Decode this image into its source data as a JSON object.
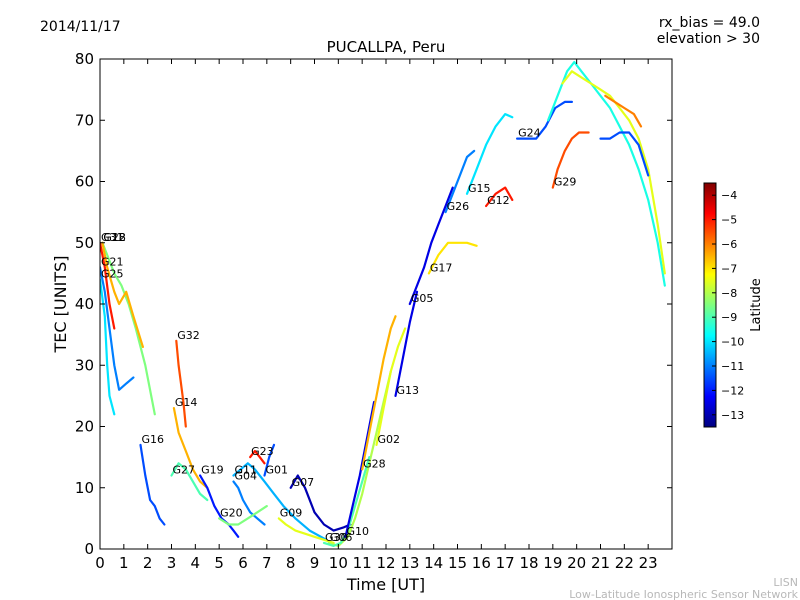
{
  "header": {
    "date": "2014/11/17",
    "rx_bias": "rx_bias = 49.0",
    "elevation": "elevation > 30"
  },
  "credit": {
    "line1": "LISN",
    "line2": "Low-Latitude Ionospheric Sensor Network"
  },
  "chart_data": {
    "type": "scatter",
    "title": "PUCALLPA, Peru",
    "xlabel": "Time [UT]",
    "ylabel": "TEC [UNITS]",
    "xlim": [
      0,
      24
    ],
    "ylim": [
      0,
      80
    ],
    "x_ticks": [
      0,
      1,
      2,
      3,
      4,
      5,
      6,
      7,
      8,
      9,
      10,
      11,
      12,
      13,
      14,
      15,
      16,
      17,
      18,
      19,
      20,
      21,
      22,
      23
    ],
    "y_ticks": [
      0,
      10,
      20,
      30,
      40,
      50,
      60,
      70,
      80
    ],
    "grid": false,
    "colorbar": {
      "label": "Latitude",
      "range": [
        -13.5,
        -3.5
      ],
      "ticks": [
        -4,
        -5,
        -6,
        -7,
        -8,
        -9,
        -10,
        -11,
        -12,
        -13
      ],
      "colormap": [
        "#00007f",
        "#0000ff",
        "#007fff",
        "#00ffff",
        "#7fff7f",
        "#ffff00",
        "#ff7f00",
        "#ff0000",
        "#7f0000"
      ]
    },
    "series": [
      {
        "name": "G22",
        "lat": -8.5,
        "points": [
          [
            0.1,
            50
          ],
          [
            0.3,
            48
          ],
          [
            0.6,
            45
          ],
          [
            0.9,
            43
          ],
          [
            1.2,
            40
          ],
          [
            1.5,
            36
          ],
          [
            1.9,
            30
          ],
          [
            2.3,
            22
          ]
        ]
      },
      {
        "name": "G18",
        "lat": -6.5,
        "points": [
          [
            0.1,
            50
          ],
          [
            0.3,
            46
          ],
          [
            0.6,
            42
          ],
          [
            0.8,
            40
          ],
          [
            1.1,
            42
          ],
          [
            1.4,
            38
          ],
          [
            1.8,
            33
          ]
        ]
      },
      {
        "name": "G31",
        "lat": -5.0,
        "points": [
          [
            0.0,
            50
          ],
          [
            0.2,
            46
          ],
          [
            0.4,
            40
          ],
          [
            0.6,
            36
          ]
        ]
      },
      {
        "name": "G21",
        "lat": -11.0,
        "points": [
          [
            0.0,
            46
          ],
          [
            0.2,
            42
          ],
          [
            0.4,
            36
          ],
          [
            0.6,
            30
          ],
          [
            0.8,
            26
          ],
          [
            1.1,
            27
          ],
          [
            1.4,
            28
          ]
        ]
      },
      {
        "name": "G25",
        "lat": -10.0,
        "points": [
          [
            0.0,
            44
          ],
          [
            0.2,
            38
          ],
          [
            0.3,
            30
          ],
          [
            0.4,
            25
          ],
          [
            0.6,
            22
          ]
        ]
      },
      {
        "name": "G16",
        "lat": -11.5,
        "points": [
          [
            1.7,
            17
          ],
          [
            1.9,
            12
          ],
          [
            2.1,
            8
          ],
          [
            2.3,
            7
          ],
          [
            2.5,
            5
          ],
          [
            2.7,
            4
          ]
        ]
      },
      {
        "name": "G32",
        "lat": -5.5,
        "points": [
          [
            3.2,
            34
          ],
          [
            3.3,
            30
          ],
          [
            3.4,
            27
          ],
          [
            3.5,
            24
          ],
          [
            3.6,
            20
          ]
        ]
      },
      {
        "name": "G14",
        "lat": -6.5,
        "points": [
          [
            3.1,
            23
          ],
          [
            3.3,
            19
          ],
          [
            3.6,
            16
          ],
          [
            3.9,
            13
          ],
          [
            4.2,
            11
          ],
          [
            4.5,
            10
          ]
        ]
      },
      {
        "name": "G27",
        "lat": -9.0,
        "points": [
          [
            3.0,
            12
          ],
          [
            3.3,
            14
          ],
          [
            3.6,
            13
          ],
          [
            3.9,
            11
          ],
          [
            4.2,
            9
          ],
          [
            4.5,
            8
          ]
        ]
      },
      {
        "name": "G19",
        "lat": -12.0,
        "points": [
          [
            4.2,
            12
          ],
          [
            4.5,
            10
          ],
          [
            4.8,
            7
          ],
          [
            5.1,
            5
          ],
          [
            5.4,
            4
          ],
          [
            5.6,
            3
          ],
          [
            5.8,
            2
          ]
        ]
      },
      {
        "name": "G04",
        "lat": -11.0,
        "points": [
          [
            5.6,
            11
          ],
          [
            5.8,
            10
          ],
          [
            6.0,
            8
          ],
          [
            6.3,
            6
          ],
          [
            6.6,
            5
          ],
          [
            6.9,
            4
          ]
        ]
      },
      {
        "name": "G11",
        "lat": -10.5,
        "points": [
          [
            5.6,
            12
          ],
          [
            5.9,
            13
          ],
          [
            6.2,
            14
          ],
          [
            6.5,
            13
          ],
          [
            6.9,
            11
          ],
          [
            7.3,
            9
          ],
          [
            7.7,
            7
          ],
          [
            8.2,
            5
          ],
          [
            8.8,
            3
          ],
          [
            9.5,
            1.5
          ]
        ]
      },
      {
        "name": "G23",
        "lat": -5.0,
        "points": [
          [
            6.3,
            15
          ],
          [
            6.5,
            16
          ],
          [
            6.7,
            15
          ],
          [
            6.9,
            14
          ]
        ]
      },
      {
        "name": "G01",
        "lat": -11.5,
        "points": [
          [
            6.9,
            12
          ],
          [
            7.1,
            15
          ],
          [
            7.3,
            17
          ]
        ]
      },
      {
        "name": "G20",
        "lat": -8.5,
        "points": [
          [
            5.0,
            5
          ],
          [
            5.4,
            4
          ],
          [
            5.8,
            4
          ],
          [
            6.2,
            5
          ],
          [
            6.6,
            6
          ],
          [
            7.0,
            7
          ]
        ]
      },
      {
        "name": "G09",
        "lat": -7.5,
        "points": [
          [
            7.5,
            5
          ],
          [
            7.8,
            4
          ],
          [
            8.2,
            3
          ],
          [
            8.6,
            2.5
          ],
          [
            9.0,
            2
          ],
          [
            9.4,
            1.5
          ],
          [
            9.8,
            1
          ]
        ]
      },
      {
        "name": "G07",
        "lat": -13.0,
        "points": [
          [
            8.0,
            10
          ],
          [
            8.3,
            12
          ],
          [
            8.6,
            10
          ],
          [
            9.0,
            6
          ],
          [
            9.4,
            4
          ],
          [
            9.8,
            3
          ],
          [
            10.2,
            3.5
          ],
          [
            10.5,
            4
          ]
        ]
      },
      {
        "name": "G06",
        "lat": -8.0,
        "points": [
          [
            9.6,
            1
          ],
          [
            10.0,
            0.5
          ],
          [
            10.4,
            2
          ],
          [
            10.7,
            5
          ],
          [
            11.0,
            9
          ],
          [
            11.3,
            14
          ],
          [
            11.6,
            19
          ],
          [
            11.9,
            24
          ],
          [
            12.2,
            29
          ]
        ]
      },
      {
        "name": "G30",
        "lat": -9.0,
        "points": [
          [
            9.4,
            1
          ],
          [
            9.8,
            0.5
          ],
          [
            10.1,
            1
          ],
          [
            10.4,
            3
          ],
          [
            10.7,
            7
          ],
          [
            11.0,
            11
          ],
          [
            11.3,
            15
          ]
        ]
      },
      {
        "name": "G10",
        "lat": -12.5,
        "points": [
          [
            10.3,
            2
          ],
          [
            10.6,
            7
          ],
          [
            10.9,
            12
          ],
          [
            11.2,
            18
          ],
          [
            11.5,
            24
          ]
        ]
      },
      {
        "name": "G28",
        "lat": -6.5,
        "points": [
          [
            11.0,
            13
          ],
          [
            11.3,
            19
          ],
          [
            11.6,
            25
          ],
          [
            11.9,
            31
          ],
          [
            12.2,
            36
          ],
          [
            12.4,
            38
          ]
        ]
      },
      {
        "name": "G02",
        "lat": -7.5,
        "points": [
          [
            11.6,
            17
          ],
          [
            11.9,
            23
          ],
          [
            12.2,
            29
          ],
          [
            12.5,
            33
          ],
          [
            12.8,
            36
          ]
        ]
      },
      {
        "name": "G13",
        "lat": -12.5,
        "points": [
          [
            12.4,
            25
          ],
          [
            12.7,
            31
          ],
          [
            13.0,
            37
          ],
          [
            13.3,
            42
          ]
        ]
      },
      {
        "name": "G05",
        "lat": -12.5,
        "points": [
          [
            13.0,
            40
          ],
          [
            13.3,
            43
          ],
          [
            13.6,
            46
          ],
          [
            13.9,
            50
          ],
          [
            14.2,
            53
          ],
          [
            14.5,
            56
          ],
          [
            14.8,
            59
          ]
        ]
      },
      {
        "name": "G17",
        "lat": -7.0,
        "points": [
          [
            13.8,
            45
          ],
          [
            14.2,
            48
          ],
          [
            14.6,
            50
          ],
          [
            15.0,
            50
          ],
          [
            15.4,
            50
          ],
          [
            15.8,
            49.5
          ]
        ]
      },
      {
        "name": "G26",
        "lat": -11.0,
        "points": [
          [
            14.5,
            55
          ],
          [
            14.8,
            58
          ],
          [
            15.1,
            61
          ],
          [
            15.4,
            64
          ],
          [
            15.7,
            65
          ]
        ]
      },
      {
        "name": "G12",
        "lat": -5.0,
        "points": [
          [
            16.2,
            56
          ],
          [
            16.6,
            58
          ],
          [
            17.0,
            59
          ],
          [
            17.3,
            57
          ]
        ]
      },
      {
        "name": "G15",
        "lat": -10.0,
        "points": [
          [
            15.4,
            58
          ],
          [
            15.8,
            62
          ],
          [
            16.2,
            66
          ],
          [
            16.6,
            69
          ],
          [
            17.0,
            71
          ],
          [
            17.3,
            70.5
          ]
        ]
      },
      {
        "name": "G24",
        "lat": -11.5,
        "points": [
          [
            17.5,
            67
          ],
          [
            17.9,
            67
          ],
          [
            18.3,
            67
          ],
          [
            18.7,
            69
          ],
          [
            19.1,
            72
          ],
          [
            19.5,
            73
          ],
          [
            19.8,
            73
          ]
        ]
      },
      {
        "name": "G29",
        "lat": -5.5,
        "points": [
          [
            19.0,
            59
          ],
          [
            19.2,
            62
          ],
          [
            19.5,
            65
          ],
          [
            19.8,
            67
          ],
          [
            20.1,
            68
          ],
          [
            20.5,
            68
          ]
        ]
      },
      {
        "name": "",
        "lat": -9.5,
        "points": [
          [
            18.8,
            70
          ],
          [
            19.2,
            74
          ],
          [
            19.6,
            78
          ],
          [
            19.9,
            79.5
          ],
          [
            20.2,
            78
          ],
          [
            20.6,
            76
          ],
          [
            21.0,
            74
          ],
          [
            21.4,
            72
          ],
          [
            21.8,
            69
          ],
          [
            22.2,
            66
          ],
          [
            22.6,
            62
          ],
          [
            23.0,
            57
          ],
          [
            23.4,
            50
          ],
          [
            23.7,
            43
          ]
        ]
      },
      {
        "name": "",
        "lat": -7.5,
        "points": [
          [
            19.4,
            76
          ],
          [
            19.8,
            78
          ],
          [
            20.2,
            77
          ],
          [
            20.6,
            76
          ],
          [
            21.0,
            75
          ],
          [
            21.4,
            74
          ],
          [
            21.8,
            72
          ],
          [
            22.2,
            70
          ],
          [
            22.6,
            67
          ],
          [
            23.0,
            62
          ],
          [
            23.4,
            53
          ],
          [
            23.7,
            45
          ]
        ]
      },
      {
        "name": "",
        "lat": -6.0,
        "points": [
          [
            21.2,
            74
          ],
          [
            21.6,
            73
          ],
          [
            22.0,
            72
          ],
          [
            22.4,
            71
          ],
          [
            22.7,
            69
          ]
        ]
      },
      {
        "name": "",
        "lat": -11.5,
        "points": [
          [
            21.0,
            67
          ],
          [
            21.4,
            67
          ],
          [
            21.8,
            68
          ],
          [
            22.2,
            68
          ],
          [
            22.6,
            66
          ],
          [
            23.0,
            61
          ]
        ]
      }
    ]
  }
}
